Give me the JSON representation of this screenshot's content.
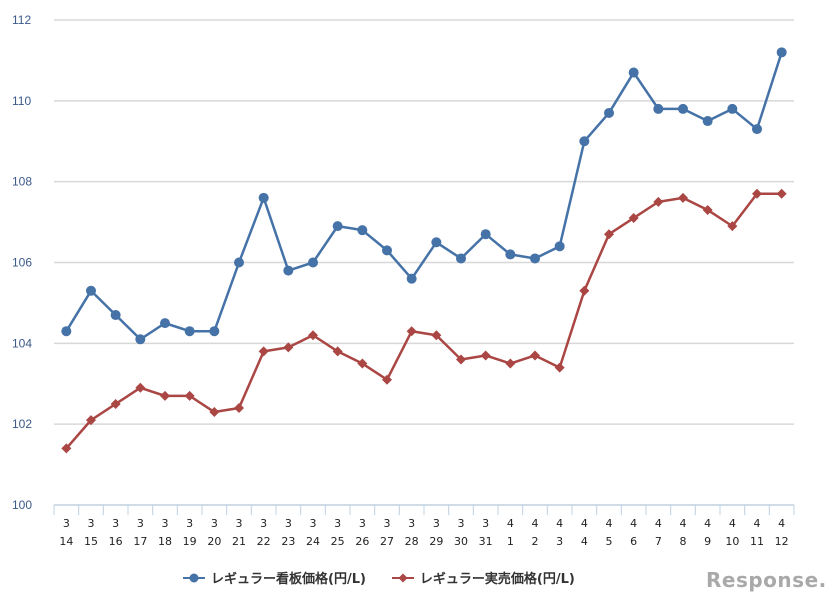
{
  "chart_data": {
    "type": "line",
    "title": "",
    "xlabel": "",
    "ylabel": "",
    "ylim": [
      100,
      112
    ],
    "yticks": [
      100,
      102,
      104,
      106,
      108,
      110,
      112
    ],
    "grid": true,
    "legend_position": "bottom",
    "categories": [
      {
        "month": "3",
        "day": "14"
      },
      {
        "month": "3",
        "day": "15"
      },
      {
        "month": "3",
        "day": "16"
      },
      {
        "month": "3",
        "day": "17"
      },
      {
        "month": "3",
        "day": "18"
      },
      {
        "month": "3",
        "day": "19"
      },
      {
        "month": "3",
        "day": "20"
      },
      {
        "month": "3",
        "day": "21"
      },
      {
        "month": "3",
        "day": "22"
      },
      {
        "month": "3",
        "day": "23"
      },
      {
        "month": "3",
        "day": "24"
      },
      {
        "month": "3",
        "day": "25"
      },
      {
        "month": "3",
        "day": "26"
      },
      {
        "month": "3",
        "day": "27"
      },
      {
        "month": "3",
        "day": "28"
      },
      {
        "month": "3",
        "day": "29"
      },
      {
        "month": "3",
        "day": "30"
      },
      {
        "month": "3",
        "day": "31"
      },
      {
        "month": "4",
        "day": "1"
      },
      {
        "month": "4",
        "day": "2"
      },
      {
        "month": "4",
        "day": "3"
      },
      {
        "month": "4",
        "day": "4"
      },
      {
        "month": "4",
        "day": "5"
      },
      {
        "month": "4",
        "day": "6"
      },
      {
        "month": "4",
        "day": "7"
      },
      {
        "month": "4",
        "day": "8"
      },
      {
        "month": "4",
        "day": "9"
      },
      {
        "month": "4",
        "day": "10"
      },
      {
        "month": "4",
        "day": "11"
      },
      {
        "month": "4",
        "day": "12"
      }
    ],
    "series": [
      {
        "name": "レギュラー看板価格(円/L)",
        "color": "#4572a7",
        "marker": "circle",
        "values": [
          104.3,
          105.3,
          104.7,
          104.1,
          104.5,
          104.3,
          104.3,
          106.0,
          107.6,
          105.8,
          106.0,
          106.9,
          106.8,
          106.3,
          105.6,
          106.5,
          106.1,
          106.7,
          106.2,
          106.1,
          106.4,
          109.0,
          109.7,
          110.7,
          109.8,
          109.8,
          109.5,
          109.8,
          109.3,
          111.2
        ]
      },
      {
        "name": "レギュラー実売価格(円/L)",
        "color": "#aa4643",
        "marker": "diamond",
        "values": [
          101.4,
          102.1,
          102.5,
          102.9,
          102.7,
          102.7,
          102.3,
          102.4,
          103.8,
          103.9,
          104.2,
          103.8,
          103.5,
          103.1,
          104.3,
          104.2,
          103.6,
          103.7,
          103.5,
          103.7,
          103.4,
          105.3,
          106.7,
          107.1,
          107.5,
          107.6,
          107.3,
          106.9,
          107.7,
          107.7
        ]
      }
    ]
  },
  "legend": {
    "items": [
      {
        "label": "レギュラー看板価格(円/L)",
        "color": "#4572a7"
      },
      {
        "label": "レギュラー実売価格(円/L)",
        "color": "#aa4643"
      }
    ]
  },
  "branding": {
    "logo_text": "Response."
  }
}
